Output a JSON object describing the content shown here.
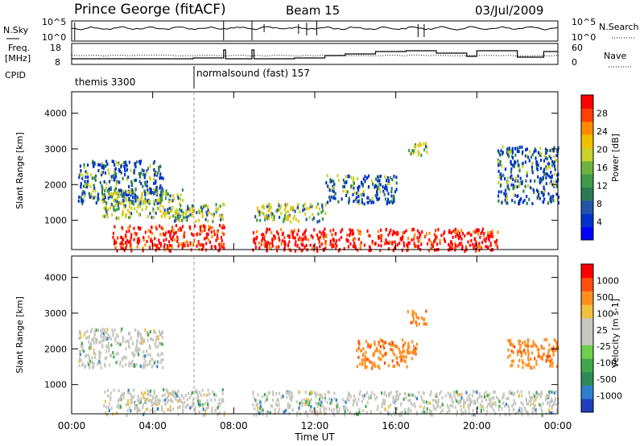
{
  "header": {
    "station": "Prince George (fitACF)",
    "beam": "Beam 15",
    "date": "03/Jul/2009"
  },
  "strip_nsky": {
    "left_label": "N.Sky",
    "right_label": "N.Search",
    "left_ticks": [
      "10^5",
      "10^0"
    ],
    "right_ticks": [
      "10^5",
      "10^0"
    ]
  },
  "strip_freq": {
    "left_label_1": "Freq.",
    "left_label_2": "[MHz]",
    "right_label": "Nave",
    "left_ticks": [
      "18",
      "8"
    ],
    "right_ticks": [
      "60",
      "0"
    ]
  },
  "cpid": {
    "label": "CPID",
    "modes": [
      "themis 3300",
      "normalsound (fast) 157"
    ]
  },
  "x_axis": {
    "tick_labels": [
      "00:00",
      "04:00",
      "08:00",
      "12:00",
      "16:00",
      "20:00",
      "00:00"
    ],
    "title": "Time UT"
  },
  "chart_data": [
    {
      "type": "heatmap",
      "title": "",
      "xlabel": "Time UT",
      "ylabel": "Slant Range [km]",
      "xlim": [
        0,
        24
      ],
      "ylim": [
        180,
        4600
      ],
      "y_tick_labels": [
        "1000",
        "2000",
        "3000",
        "4000"
      ],
      "colorbar_label": "Power [dB]",
      "colorbar_ticks": [
        "28",
        "24",
        "20",
        "16",
        "12",
        "8",
        "4"
      ],
      "colorbar_colors": [
        "#0000ff",
        "#0033cc",
        "#2255aa",
        "#2b7a55",
        "#3f9a4a",
        "#6db33f",
        "#c7d22b",
        "#f0c000",
        "#ff8c00",
        "#ff4000",
        "#ff0000"
      ],
      "data_gap_hours": [
        7.5,
        8.9
      ],
      "echo_regions": [
        {
          "t": [
            0.3,
            4.5
          ],
          "r": [
            1500,
            2700
          ],
          "level": "low"
        },
        {
          "t": [
            1.5,
            5.5
          ],
          "r": [
            1100,
            1900
          ],
          "level": "mid"
        },
        {
          "t": [
            2.0,
            7.5
          ],
          "r": [
            180,
            900
          ],
          "level": "high"
        },
        {
          "t": [
            5.0,
            7.5
          ],
          "r": [
            1000,
            1500
          ],
          "level": "mid"
        },
        {
          "t": [
            8.9,
            21.0
          ],
          "r": [
            180,
            800
          ],
          "level": "high"
        },
        {
          "t": [
            9.0,
            12.5
          ],
          "r": [
            1000,
            1500
          ],
          "level": "mid"
        },
        {
          "t": [
            12.5,
            16.0
          ],
          "r": [
            1500,
            2300
          ],
          "level": "low"
        },
        {
          "t": [
            16.5,
            17.5
          ],
          "r": [
            2800,
            3200
          ],
          "level": "mid"
        },
        {
          "t": [
            21.0,
            24.0
          ],
          "r": [
            1500,
            3100
          ],
          "level": "low"
        }
      ]
    },
    {
      "type": "heatmap",
      "title": "",
      "xlabel": "Time UT",
      "ylabel": "Slant Range [km]",
      "xlim": [
        0,
        24
      ],
      "ylim": [
        180,
        4600
      ],
      "y_tick_labels": [
        "1000",
        "2000",
        "3000",
        "4000"
      ],
      "colorbar_label": "Velocity [m s-1]",
      "colorbar_ticks": [
        "1000",
        "500",
        "100",
        "25",
        "-25",
        "-100",
        "-500",
        "-1000"
      ],
      "colorbar_colors": [
        "#1f3fbf",
        "#2f7fcf",
        "#2e8b57",
        "#3fa84a",
        "#6fd04a",
        "#c8c8c0",
        "#c8c8c0",
        "#f0c040",
        "#ff9020",
        "#ff5010",
        "#ff0000"
      ],
      "data_gap_hours": [
        7.5,
        8.9
      ],
      "echo_regions": [
        {
          "t": [
            0.3,
            4.5
          ],
          "r": [
            1500,
            2600
          ],
          "level": "ground"
        },
        {
          "t": [
            1.5,
            7.5
          ],
          "r": [
            180,
            900
          ],
          "level": "ground"
        },
        {
          "t": [
            8.9,
            24.0
          ],
          "r": [
            180,
            850
          ],
          "level": "ground"
        },
        {
          "t": [
            16.5,
            17.5
          ],
          "r": [
            2700,
            3100
          ],
          "level": "away"
        },
        {
          "t": [
            14.0,
            17.0
          ],
          "r": [
            1500,
            2300
          ],
          "level": "away"
        },
        {
          "t": [
            21.5,
            24.0
          ],
          "r": [
            1500,
            2300
          ],
          "level": "away"
        }
      ]
    }
  ]
}
